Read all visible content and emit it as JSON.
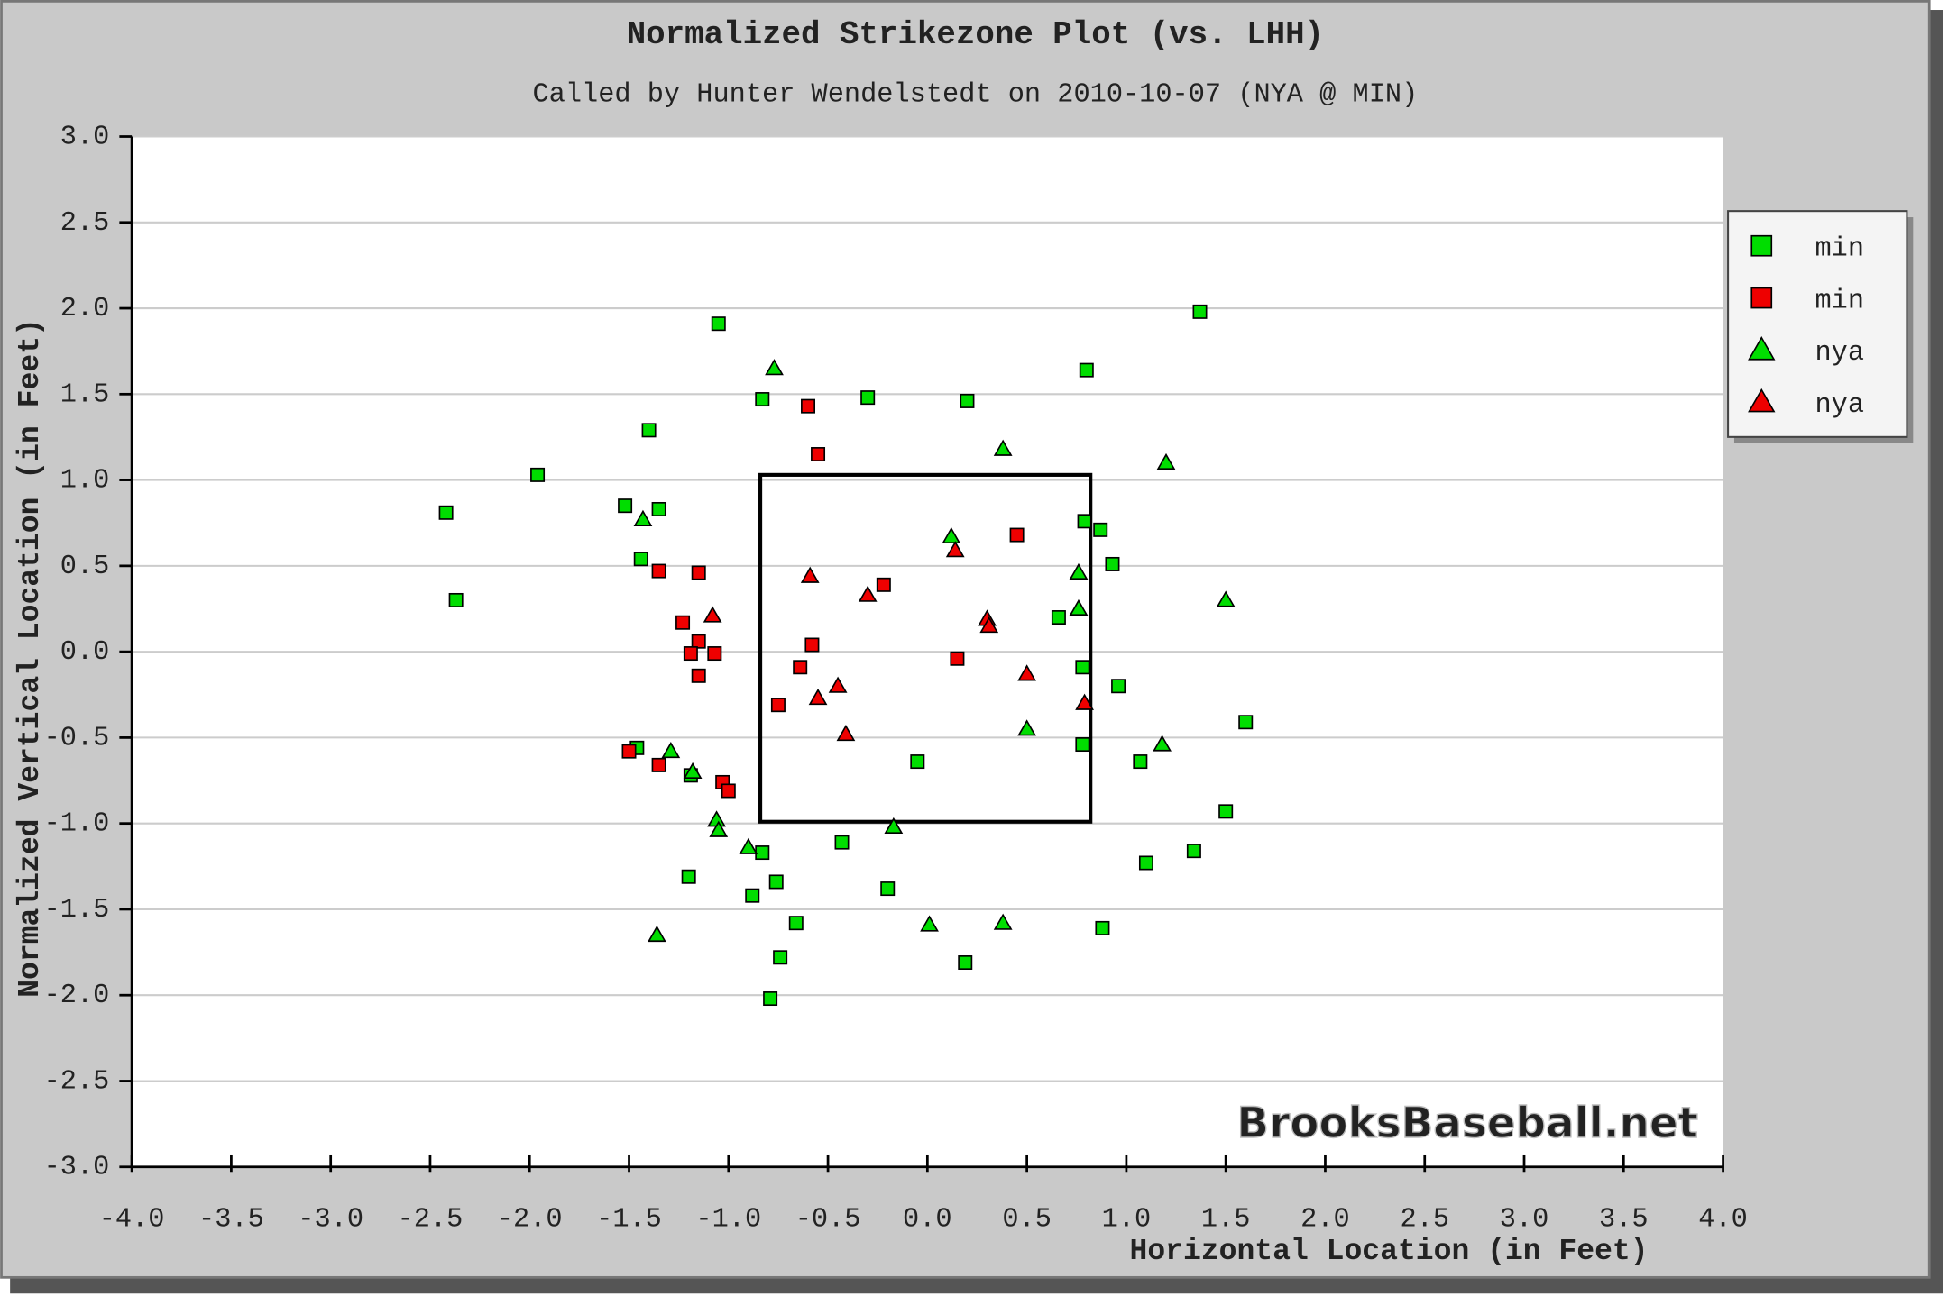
{
  "chart_data": {
    "type": "scatter",
    "title": "Normalized Strikezone Plot (vs. LHH)",
    "subtitle": "Called by Hunter Wendelstedt on 2010-10-07 (NYA @ MIN)",
    "x_label": "Horizontal Location (in Feet)",
    "y_label": "Normalized Vertical Location (in Feet)",
    "watermark": "BrooksBaseball.net",
    "xlim": [
      -4,
      4
    ],
    "ylim": [
      -3,
      3
    ],
    "xticks": [
      {
        "value": -4,
        "label": "-4.0"
      },
      {
        "value": -3.5,
        "label": "-3.5"
      },
      {
        "value": -3,
        "label": "-3.0"
      },
      {
        "value": -2.5,
        "label": "-2.5"
      },
      {
        "value": -2,
        "label": "-2.0"
      },
      {
        "value": -1.5,
        "label": "-1.5"
      },
      {
        "value": -1,
        "label": "-1.0"
      },
      {
        "value": -0.5,
        "label": "-0.5"
      },
      {
        "value": 0,
        "label": "0.0"
      },
      {
        "value": 0.5,
        "label": "0.5"
      },
      {
        "value": 1,
        "label": "1.0"
      },
      {
        "value": 1.5,
        "label": "1.5"
      },
      {
        "value": 2,
        "label": "2.0"
      },
      {
        "value": 2.5,
        "label": "2.5"
      },
      {
        "value": 3,
        "label": "3.0"
      },
      {
        "value": 3.5,
        "label": "3.5"
      },
      {
        "value": 4,
        "label": "4.0"
      }
    ],
    "yticks": [
      {
        "value": -3,
        "label": "-3.0"
      },
      {
        "value": -2.5,
        "label": "-2.5"
      },
      {
        "value": -2,
        "label": "-2.0"
      },
      {
        "value": -1.5,
        "label": "-1.5"
      },
      {
        "value": -1,
        "label": "-1.0"
      },
      {
        "value": -0.5,
        "label": "-0.5"
      },
      {
        "value": 0,
        "label": "0.0"
      },
      {
        "value": 0.5,
        "label": "0.5"
      },
      {
        "value": 1,
        "label": "1.0"
      },
      {
        "value": 1.5,
        "label": "1.5"
      },
      {
        "value": 2,
        "label": "2.0"
      },
      {
        "value": 2.5,
        "label": "2.5"
      },
      {
        "value": 3,
        "label": "3.0"
      }
    ],
    "grid": true,
    "legend": "right",
    "strike_zone": {
      "x": [
        -0.84,
        0.82
      ],
      "y": [
        -0.99,
        1.03
      ]
    },
    "series": [
      {
        "name": "min",
        "color": "#00dd00",
        "marker": "square",
        "x": [
          -2.42,
          -2.37,
          -1.96,
          -1.05,
          -1.4,
          -1.52,
          -1.35,
          -1.44,
          -0.83,
          -0.3,
          0.2,
          0.8,
          1.37,
          0.79,
          0.87,
          0.93,
          0.66,
          0.78,
          0.96,
          0.78,
          1.6,
          1.07,
          1.5,
          1.34,
          1.1,
          0.88,
          -0.05,
          -0.43,
          -0.2,
          0.19,
          -0.66,
          -0.74,
          -0.79,
          -0.88,
          -0.76,
          -0.83,
          -1.2,
          -1.46,
          -1.19
        ],
        "values": [
          0.81,
          0.3,
          1.03,
          1.91,
          1.29,
          0.85,
          0.83,
          0.54,
          1.47,
          1.48,
          1.46,
          1.64,
          1.98,
          0.76,
          0.71,
          0.51,
          0.2,
          -0.09,
          -0.2,
          -0.54,
          -0.41,
          -0.64,
          -0.93,
          -1.16,
          -1.23,
          -1.61,
          -0.64,
          -1.11,
          -1.38,
          -1.81,
          -1.58,
          -1.78,
          -2.02,
          -1.42,
          -1.34,
          -1.17,
          -1.31,
          -0.56,
          -0.72
        ]
      },
      {
        "name": "min",
        "color": "#ee0000",
        "marker": "square",
        "x": [
          -0.6,
          -0.55,
          0.45,
          -0.22,
          -1.15,
          -1.35,
          -1.23,
          -1.15,
          -1.19,
          -1.07,
          -1.15,
          -0.58,
          -0.64,
          -0.75,
          0.15,
          -1.5,
          -1.35,
          -1.03,
          -1.0
        ],
        "values": [
          1.43,
          1.15,
          0.68,
          0.39,
          0.46,
          0.47,
          0.17,
          0.06,
          -0.01,
          -0.01,
          -0.14,
          0.04,
          -0.09,
          -0.31,
          -0.04,
          -0.58,
          -0.66,
          -0.76,
          -0.81
        ]
      },
      {
        "name": "nya",
        "color": "#00dd00",
        "marker": "triangle",
        "x": [
          -0.77,
          0.38,
          1.2,
          -1.43,
          0.12,
          0.76,
          0.76,
          1.5,
          0.5,
          1.18,
          -1.29,
          -1.18,
          -1.06,
          -1.05,
          -0.9,
          -0.17,
          0.01,
          0.38,
          -1.36
        ],
        "values": [
          1.65,
          1.18,
          1.1,
          0.77,
          0.67,
          0.46,
          0.25,
          0.3,
          -0.45,
          -0.54,
          -0.58,
          -0.7,
          -0.98,
          -1.04,
          -1.14,
          -1.02,
          -1.59,
          -1.58,
          -1.65
        ]
      },
      {
        "name": "nya",
        "color": "#ee0000",
        "marker": "triangle",
        "x": [
          -0.59,
          -0.3,
          0.14,
          -1.08,
          0.3,
          0.31,
          0.5,
          -0.45,
          -0.55,
          -0.41,
          0.79
        ],
        "values": [
          0.44,
          0.33,
          0.59,
          0.21,
          0.19,
          0.15,
          -0.13,
          -0.2,
          -0.27,
          -0.48,
          -0.3
        ]
      }
    ]
  }
}
